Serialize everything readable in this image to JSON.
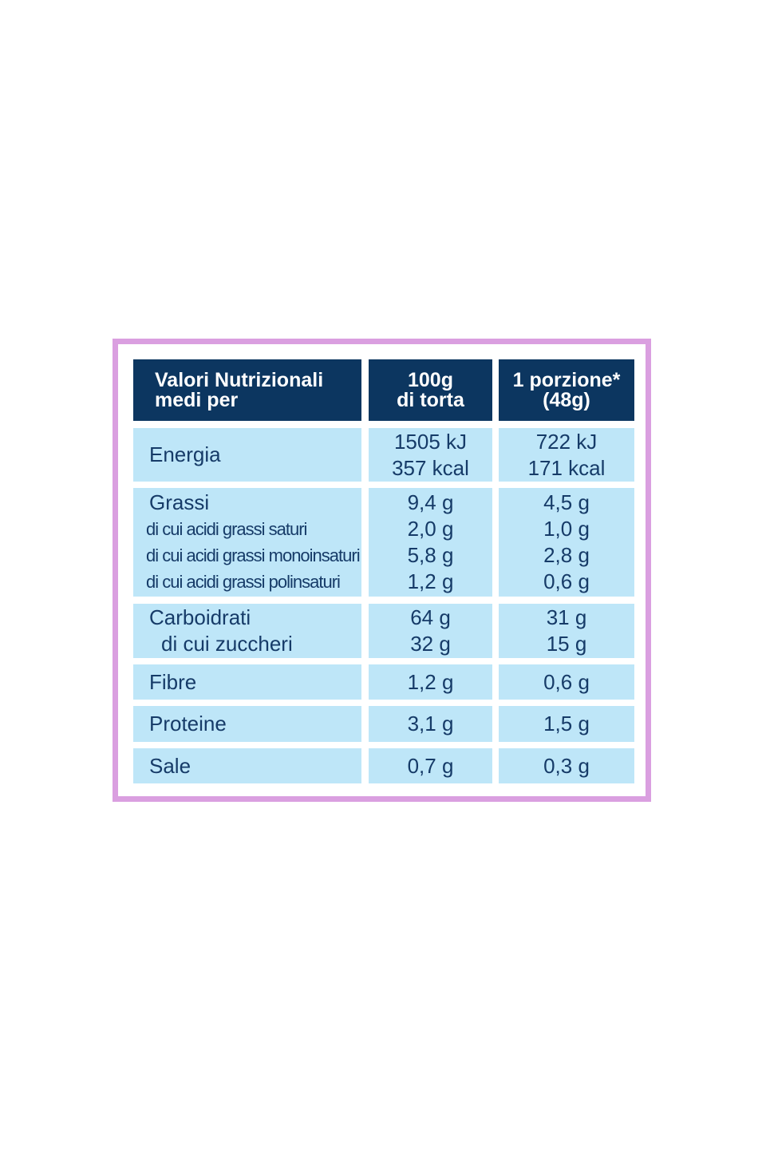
{
  "header": [
    "Valori Nutrizionali medi per",
    "100g di torta",
    "1 porzione* (48g)"
  ],
  "header_lines": [
    [
      "Valori Nutrizionali",
      "medi per"
    ],
    [
      "100g",
      "di torta"
    ],
    [
      "1 porzione*",
      "(48g)"
    ]
  ],
  "rows": [
    {
      "label": [
        "Energia"
      ],
      "per_100g": [
        "1505 kJ",
        "357 kcal"
      ],
      "per_portion": [
        "722 kJ",
        "171 kcal"
      ]
    },
    {
      "label": [
        "Grassi",
        "di cui acidi grassi saturi",
        "di cui acidi grassi monoinsaturi",
        "di cui acidi grassi polinsaturi"
      ],
      "per_100g": [
        "9,4 g",
        "2,0 g",
        "5,8 g",
        "1,2 g"
      ],
      "per_portion": [
        "4,5 g",
        "1,0 g",
        "2,8 g",
        "0,6 g"
      ]
    },
    {
      "label": [
        "Carboidrati",
        "di cui zuccheri"
      ],
      "per_100g": [
        "64 g",
        "32 g"
      ],
      "per_portion": [
        "31 g",
        "15 g"
      ]
    },
    {
      "label": [
        "Fibre"
      ],
      "per_100g": [
        "1,2 g"
      ],
      "per_portion": [
        "0,6 g"
      ]
    },
    {
      "label": [
        "Proteine"
      ],
      "per_100g": [
        "3,1 g"
      ],
      "per_portion": [
        "1,5 g"
      ]
    },
    {
      "label": [
        "Sale"
      ],
      "per_100g": [
        "0,7 g"
      ],
      "per_portion": [
        "0,3 g"
      ]
    }
  ]
}
